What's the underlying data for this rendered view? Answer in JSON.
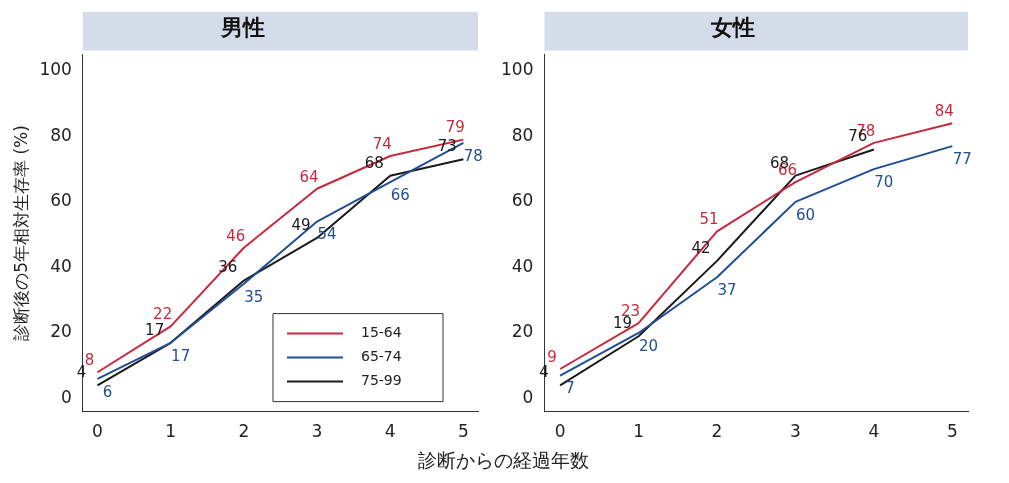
{
  "chart_data": [
    {
      "type": "line",
      "title": "男性",
      "ylabel": "診断後の5年相対生存率 (%)",
      "xlabel": "診断からの経過年数",
      "x": [
        0,
        1,
        2,
        3,
        4,
        5
      ],
      "xlim": [
        -0.2,
        5.2
      ],
      "xticks": [
        0,
        1,
        2,
        3,
        4,
        5
      ],
      "ylim": [
        -4,
        105
      ],
      "yticks": [
        0,
        20,
        40,
        60,
        80,
        100
      ],
      "grid": false,
      "legend": "bottom right",
      "marker": "none",
      "line_style": "solid",
      "data_labels": true,
      "series": [
        {
          "name": "15-64",
          "color": "#c8283c",
          "values": [
            8,
            22,
            46,
            64,
            74,
            79
          ]
        },
        {
          "name": "65-74",
          "color": "#1f4e96",
          "values": [
            6,
            17,
            35,
            54,
            66,
            78
          ]
        },
        {
          "name": "75-99",
          "color": "#1a1a1a",
          "values": [
            4,
            17,
            36,
            49,
            68,
            73
          ]
        }
      ]
    },
    {
      "type": "line",
      "title": "女性",
      "x": [
        0,
        1,
        2,
        3,
        4,
        5
      ],
      "xlim": [
        -0.2,
        5.2
      ],
      "xticks": [
        0,
        1,
        2,
        3,
        4,
        5
      ],
      "ylim": [
        -4,
        105
      ],
      "yticks": [
        0,
        20,
        40,
        60,
        80,
        100
      ],
      "grid": false,
      "legend": false,
      "marker": "none",
      "line_style": "solid",
      "data_labels": true,
      "series": [
        {
          "color": "#c8283c",
          "values": [
            9,
            23,
            51,
            66,
            78,
            84
          ]
        },
        {
          "color": "#1f4e96",
          "values": [
            7,
            20,
            37,
            60,
            70,
            77
          ]
        },
        {
          "color": "#1a1a1a",
          "x": [
            0,
            1,
            2,
            3,
            4
          ],
          "values": [
            4,
            19,
            42,
            68,
            76
          ]
        }
      ]
    }
  ]
}
